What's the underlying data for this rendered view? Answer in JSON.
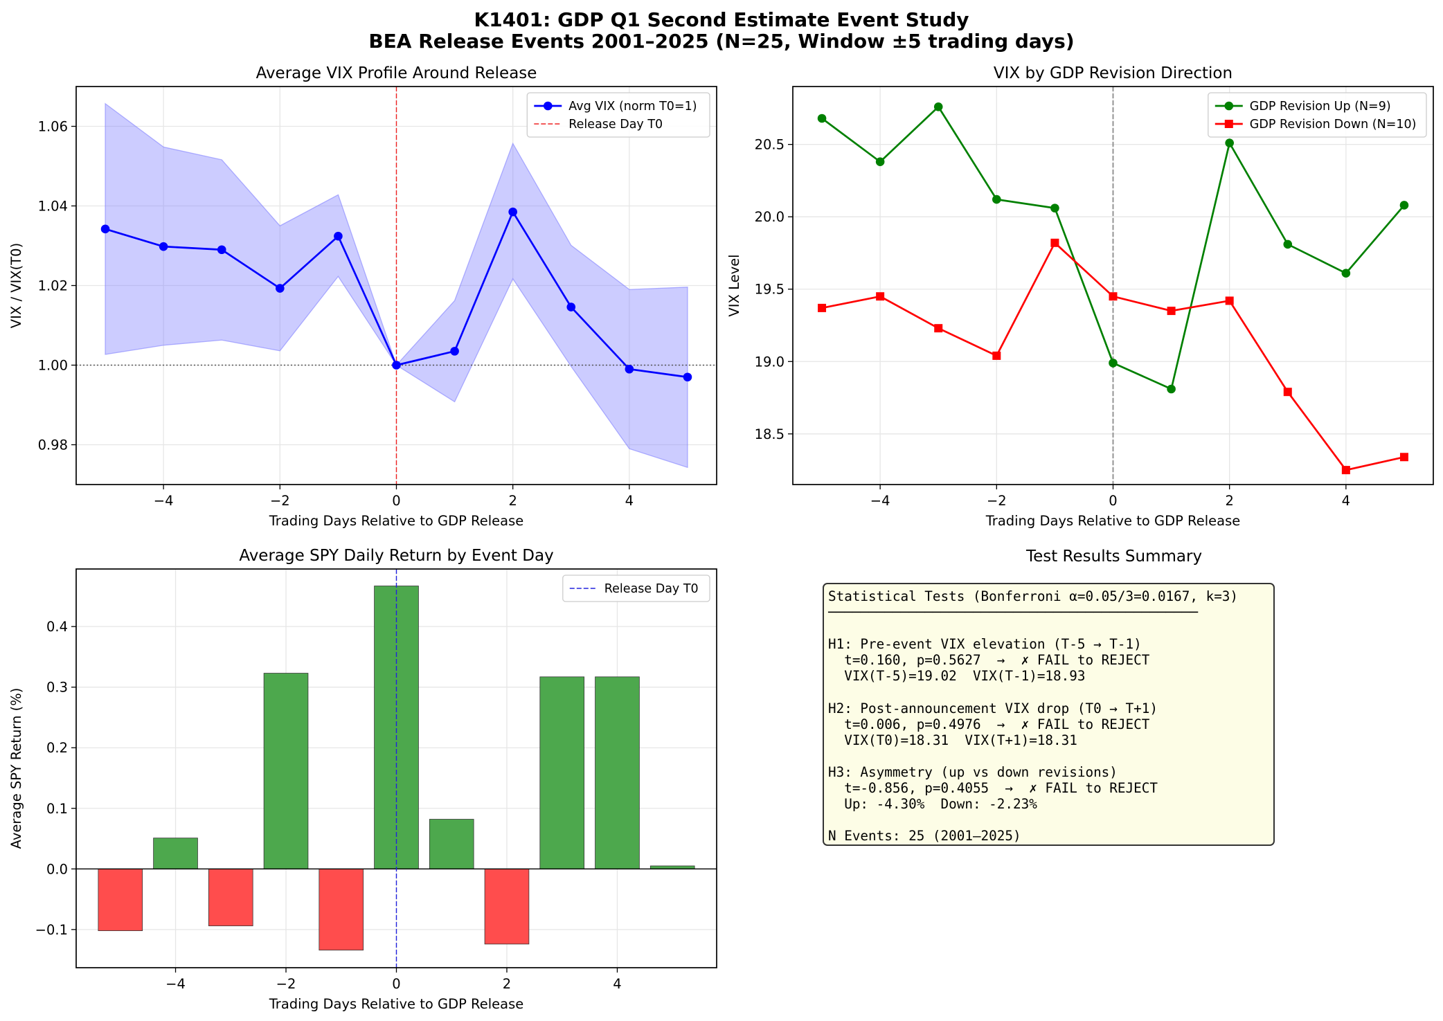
{
  "suptitle": [
    "K1401: GDP Q1 Second Estimate Event Study",
    "BEA Release Events 2001–2025 (N=25, Window ±5 trading days)"
  ],
  "chart_data": [
    {
      "type": "line",
      "title": "Average VIX Profile Around Release",
      "xlabel": "Trading Days Relative to GDP Release",
      "ylabel": "VIX / VIX(T0)",
      "xlim": [
        -5.5,
        5.5
      ],
      "ylim": [
        0.97,
        1.07
      ],
      "xticks": [
        -4,
        -2,
        0,
        2,
        4
      ],
      "xtick_labels": [
        "−4",
        "−2",
        "0",
        "2",
        "4"
      ],
      "yticks": [
        0.98,
        1.0,
        1.02,
        1.04,
        1.06
      ],
      "ytick_labels": [
        "0.98",
        "1.00",
        "1.02",
        "1.04",
        "1.06"
      ],
      "x": [
        -5,
        -4,
        -3,
        -2,
        -1,
        0,
        1,
        2,
        3,
        4,
        5
      ],
      "series": [
        {
          "name": "Avg VIX (norm T0=1)",
          "color": "#0000ff",
          "values": [
            1.0342,
            1.0298,
            1.029,
            1.0193,
            1.0324,
            1.0,
            1.0035,
            1.0385,
            1.0146,
            0.999,
            0.997
          ]
        }
      ],
      "band": {
        "color": "#8080ff",
        "upper": [
          1.0657,
          1.0548,
          1.0516,
          1.035,
          1.0428,
          1.0,
          1.0162,
          1.0557,
          1.0301,
          1.019,
          1.0196
        ],
        "lower": [
          1.0027,
          1.005,
          1.0063,
          1.0036,
          1.0223,
          1.0,
          0.9908,
          1.0217,
          0.9997,
          0.979,
          0.9743
        ]
      },
      "vline": {
        "x": 0,
        "label": "Release Day T0",
        "color": "#ee2222"
      },
      "hline": {
        "y": 1.0
      },
      "grid": true,
      "legend": "upper right"
    },
    {
      "type": "line",
      "title": "VIX by GDP Revision Direction",
      "xlabel": "Trading Days Relative to GDP Release",
      "ylabel": "VIX Level",
      "xlim": [
        -5.5,
        5.5
      ],
      "ylim": [
        18.15,
        20.9
      ],
      "xticks": [
        -4,
        -2,
        0,
        2,
        4
      ],
      "xtick_labels": [
        "−4",
        "−2",
        "0",
        "2",
        "4"
      ],
      "yticks": [
        18.5,
        19.0,
        19.5,
        20.0,
        20.5
      ],
      "ytick_labels": [
        "18.5",
        "19.0",
        "19.5",
        "20.0",
        "20.5"
      ],
      "x": [
        -5,
        -4,
        -3,
        -2,
        -1,
        0,
        1,
        2,
        3,
        4,
        5
      ],
      "series": [
        {
          "name": "GDP Revision Up (N=9)",
          "color": "#008000",
          "marker": "circle",
          "values": [
            20.68,
            20.38,
            20.76,
            20.12,
            20.06,
            18.99,
            18.81,
            20.51,
            19.81,
            19.61,
            20.08
          ]
        },
        {
          "name": "GDP Revision Down (N=10)",
          "color": "#ff0000",
          "marker": "square",
          "values": [
            19.37,
            19.45,
            19.23,
            19.04,
            19.82,
            19.45,
            19.35,
            19.42,
            18.79,
            18.25,
            18.34
          ]
        }
      ],
      "vline": {
        "x": 0
      },
      "grid": true,
      "legend": "upper right"
    },
    {
      "type": "bar",
      "title": "Average SPY Daily Return by Event Day",
      "xlabel": "Trading Days Relative to GDP Release",
      "ylabel": "Average SPY Return (%)",
      "xlim": [
        -5.8,
        5.8
      ],
      "ylim": [
        -0.163,
        0.495
      ],
      "xticks": [
        -4,
        -2,
        0,
        2,
        4
      ],
      "xtick_labels": [
        "−4",
        "−2",
        "0",
        "2",
        "4"
      ],
      "yticks": [
        -0.1,
        0.0,
        0.1,
        0.2,
        0.3,
        0.4
      ],
      "ytick_labels": [
        "−0.1",
        "0.0",
        "0.1",
        "0.2",
        "0.3",
        "0.4"
      ],
      "categories": [
        -5,
        -4,
        -3,
        -2,
        -1,
        0,
        1,
        2,
        3,
        4,
        5
      ],
      "values": [
        -0.102,
        0.051,
        -0.094,
        0.323,
        -0.134,
        0.467,
        0.082,
        -0.124,
        0.317,
        0.317,
        0.005
      ],
      "pos_color": "#4da84d",
      "neg_color": "#ff4d4d",
      "vline": {
        "x": 0,
        "label": "Release Day T0",
        "color": "#2222dd"
      },
      "grid": true,
      "legend": "upper right"
    }
  ],
  "summary": {
    "title": "Test Results Summary",
    "lines": [
      "Statistical Tests (Bonferroni α=0.05/3=0.0167, k=3)",
      "──────────────────────────────────────────────",
      "",
      "H1: Pre-event VIX elevation (T-5 → T-1)",
      "  t=0.160, p=0.5627  →  ✗ FAIL to REJECT",
      "  VIX(T-5)=19.02  VIX(T-1)=18.93",
      "",
      "H2: Post-announcement VIX drop (T0 → T+1)",
      "  t=0.006, p=0.4976  →  ✗ FAIL to REJECT",
      "  VIX(T0)=18.31  VIX(T+1)=18.31",
      "",
      "H3: Asymmetry (up vs down revisions)",
      "  t=-0.856, p=0.4055  →  ✗ FAIL to REJECT",
      "  Up: -4.30%  Down: -2.23%",
      "",
      "N Events: 25 (2001–2025)"
    ]
  }
}
